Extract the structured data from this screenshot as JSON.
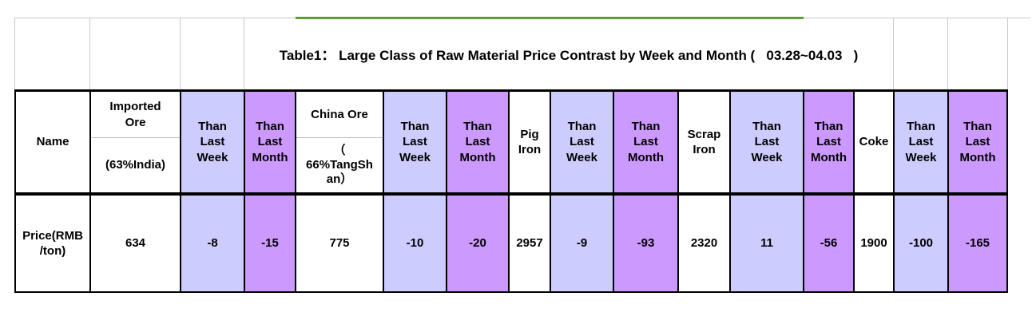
{
  "title": "Table1： Large Class of Raw Material Price Contrast by Week and Month (   03.28~04.03   )",
  "colors": {
    "than_last_week_bg": "#CCCCFF",
    "than_last_month_bg": "#CC99FF",
    "accent_green_bar": "#55A32E",
    "grid_line": "#C9C9C9",
    "table_border": "#000000"
  },
  "columns": [
    {
      "id": "name",
      "bg": "white",
      "label": "Name",
      "value": "Price(RMB\n/ton)"
    },
    {
      "id": "imported-ore",
      "bg": "white",
      "label_top": "Imported\nOre",
      "label_bottom": "(63%India)",
      "value": "634"
    },
    {
      "id": "imported-ore-week",
      "bg": "lavender",
      "label": "Than\nLast\nWeek",
      "value": "-8"
    },
    {
      "id": "imported-ore-month",
      "bg": "purple",
      "label": "Than\nLast\nMonth",
      "value": "-15"
    },
    {
      "id": "china-ore",
      "bg": "white",
      "label_top": "China Ore",
      "label_bottom": "（\n66%TangSh\nan）",
      "value": "775"
    },
    {
      "id": "china-ore-week",
      "bg": "lavender",
      "label": "Than\nLast\nWeek",
      "value": "-10"
    },
    {
      "id": "china-ore-month",
      "bg": "purple",
      "label": "Than\nLast\nMonth",
      "value": "-20"
    },
    {
      "id": "pig-iron",
      "bg": "white",
      "label": "Pig\nIron",
      "value": "2957"
    },
    {
      "id": "pig-iron-week",
      "bg": "lavender",
      "label": "Than\nLast\nWeek",
      "value": "-9"
    },
    {
      "id": "pig-iron-month",
      "bg": "purple",
      "label": "Than\nLast\nMonth",
      "value": "-93"
    },
    {
      "id": "scrap-iron",
      "bg": "white",
      "label": "Scrap\nIron",
      "value": "2320"
    },
    {
      "id": "scrap-iron-week",
      "bg": "lavender",
      "label": "Than\nLast\nWeek",
      "value": "11"
    },
    {
      "id": "scrap-iron-month",
      "bg": "purple",
      "label": "Than\nLast\nMonth",
      "value": "-56"
    },
    {
      "id": "coke",
      "bg": "white",
      "label": "Coke",
      "value": "1900"
    },
    {
      "id": "coke-week",
      "bg": "lavender",
      "label": "Than\nLast\nWeek",
      "value": "-100"
    },
    {
      "id": "coke-month",
      "bg": "purple",
      "label": "Than\nLast\nMonth",
      "value": "-165"
    }
  ],
  "chart_data": {
    "type": "table",
    "title": "Table1：Large Class of Raw Material Price Contrast by Week and Month ( 03.28~04.03 )",
    "row_label": "Price(RMB/ton)",
    "columns": [
      "Name",
      "Imported Ore (63%India)",
      "Than Last Week",
      "Than Last Month",
      "China Ore （66%TangShan）",
      "Than Last Week",
      "Than Last Month",
      "Pig Iron",
      "Than Last Week",
      "Than Last Month",
      "Scrap Iron",
      "Than Last Week",
      "Than Last Month",
      "Coke",
      "Than Last Week",
      "Than Last Month"
    ],
    "rows": [
      [
        "Price(RMB/ton)",
        634,
        -8,
        -15,
        775,
        -10,
        -20,
        2957,
        -9,
        -93,
        2320,
        11,
        -56,
        1900,
        -100,
        -165
      ]
    ],
    "materials": [
      {
        "name": "Imported Ore (63%India)",
        "price_rmb_per_ton": 634,
        "than_last_week": -8,
        "than_last_month": -15
      },
      {
        "name": "China Ore （66%TangShan）",
        "price_rmb_per_ton": 775,
        "than_last_week": -10,
        "than_last_month": -20
      },
      {
        "name": "Pig Iron",
        "price_rmb_per_ton": 2957,
        "than_last_week": -9,
        "than_last_month": -93
      },
      {
        "name": "Scrap Iron",
        "price_rmb_per_ton": 2320,
        "than_last_week": 11,
        "than_last_month": -56
      },
      {
        "name": "Coke",
        "price_rmb_per_ton": 1900,
        "than_last_week": -100,
        "than_last_month": -165
      }
    ]
  }
}
